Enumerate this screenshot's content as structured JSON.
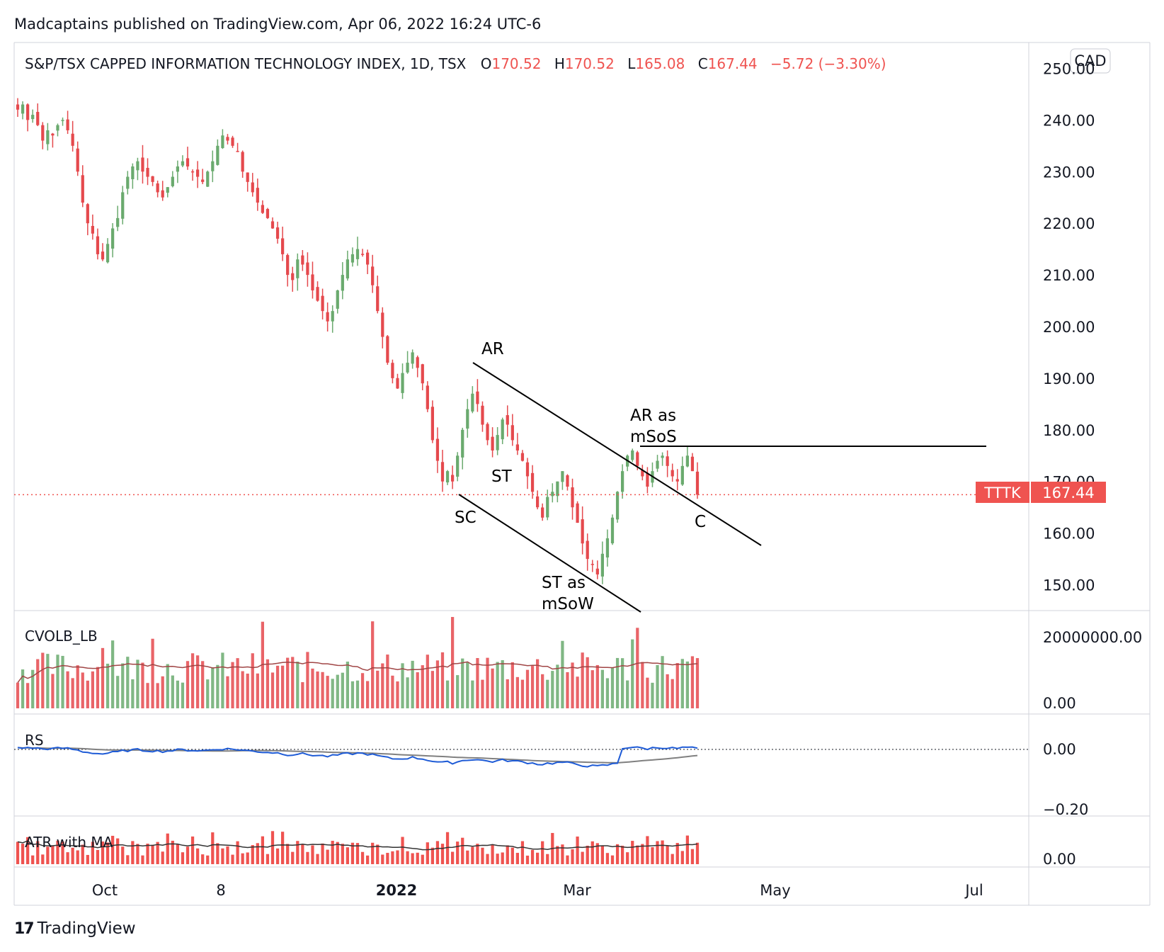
{
  "header": {
    "publish_line": "Madcaptains published on TradingView.com, Apr 06, 2022 16:24 UTC-6"
  },
  "symbol": {
    "name": "S&P/TSX CAPPED INFORMATION TECHNOLOGY INDEX, 1D, TSX",
    "open_label": "O",
    "open": "170.52",
    "high_label": "H",
    "high": "170.52",
    "low_label": "L",
    "low": "165.08",
    "close_label": "C",
    "close": "167.44",
    "change": "−5.72 (−3.30%)",
    "currency": "CAD"
  },
  "price_tag": {
    "ticker": "TTTK",
    "value": "167.44"
  },
  "colors": {
    "up": "#6aaa6e",
    "down": "#e5494d",
    "rs_line": "#1e5bd6",
    "ma_line": "#808080",
    "vol_ma": "#a04545"
  },
  "chart_data": {
    "type": "candlestick",
    "price_axis": {
      "ticks": [
        "250.00",
        "240.00",
        "230.00",
        "220.00",
        "210.00",
        "200.00",
        "190.00",
        "180.00",
        "170.00",
        "160.00",
        "150.00"
      ],
      "range": [
        145,
        255
      ]
    },
    "time_axis": {
      "labels": [
        "Oct",
        "8",
        "2022",
        "Mar",
        "May",
        "Jul"
      ]
    },
    "last_close": 167.44,
    "closes": [
      242,
      243,
      240,
      241,
      239,
      236,
      238,
      237,
      239,
      240,
      238,
      235,
      230,
      224,
      220,
      218,
      214,
      213,
      216,
      219,
      221,
      226,
      229,
      231,
      232,
      230,
      229,
      228,
      226,
      225,
      227,
      229,
      231,
      232,
      231,
      230,
      229,
      228,
      230,
      232,
      235,
      237,
      236,
      235,
      234,
      230,
      228,
      226,
      224,
      222,
      221,
      219,
      217,
      214,
      210,
      209,
      213,
      212,
      210,
      207,
      205,
      203,
      201,
      203,
      207,
      210,
      213,
      214,
      215,
      214,
      212,
      208,
      203,
      198,
      193,
      190,
      188,
      191,
      193,
      195,
      192,
      189,
      184,
      178,
      174,
      170,
      172,
      170,
      175,
      180,
      184,
      187,
      185,
      181,
      178,
      176,
      179,
      182,
      181,
      178,
      176,
      174,
      171,
      168,
      165,
      163,
      167,
      168,
      170,
      172,
      169,
      165,
      162,
      158,
      155,
      154,
      152,
      156,
      159,
      163,
      168,
      172,
      175,
      176,
      173,
      171,
      169,
      172,
      174,
      175,
      173,
      171,
      170,
      173,
      175,
      172,
      167.44
    ],
    "volume_axis": {
      "ticks": [
        "20000000.00",
        "0.00"
      ]
    },
    "rs_axis": {
      "ticks": [
        "0.00",
        "−0.20"
      ]
    },
    "atr_axis": {
      "ticks": [
        "0.00"
      ]
    },
    "annotations": [
      "AR",
      "ST",
      "SC",
      "ST as mSoW",
      "AR as mSoS",
      "C"
    ],
    "resistance_level": 176,
    "panes": [
      "CVOLB_LB",
      "RS",
      "ATR with MA"
    ]
  },
  "footer": {
    "brand": "TradingView",
    "logo_mark": "17"
  }
}
